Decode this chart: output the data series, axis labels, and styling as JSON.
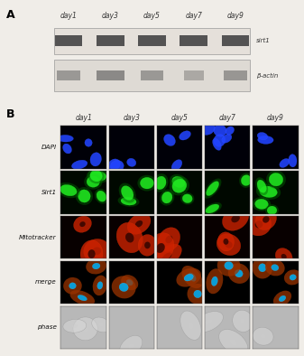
{
  "panel_A_label": "A",
  "panel_B_label": "B",
  "days_A": [
    "day1",
    "day3",
    "day5",
    "day7",
    "day9"
  ],
  "days_B": [
    "day1",
    "day3",
    "day5",
    "day7",
    "day9"
  ],
  "wb_labels": [
    "sirt1",
    "β-actin"
  ],
  "row_labels": [
    "DAPI",
    "Sirt1",
    "Mitotracker",
    "merge",
    "phase"
  ],
  "bg_color": "#f0ede8",
  "figure_width": 3.37,
  "figure_height": 3.94,
  "dpi": 100
}
